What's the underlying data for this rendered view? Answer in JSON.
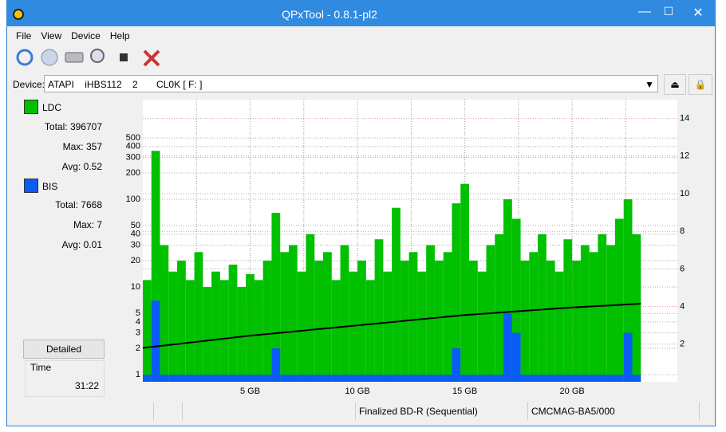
{
  "window": {
    "title": "QPxTool - 0.8.1-pl2",
    "menu": [
      "File",
      "View",
      "Device",
      "Help"
    ],
    "device_label": "Device:",
    "device": "ATAPI    iHBS112    2       CL0K [ F: ]",
    "ldc_stats": [
      {
        "label": "Total:",
        "value": 396707
      },
      {
        "label": "Max:",
        "value": 357
      },
      {
        "label": "Avg:",
        "value": 0.52
      }
    ],
    "bis_stats": [
      {
        "label": "Total:",
        "value": 7668
      },
      {
        "label": "Max:",
        "value": 7
      },
      {
        "label": "Avg:",
        "value": 0.01
      }
    ],
    "detailed_button": "Detailed",
    "time_label": "Time",
    "time": "31:22",
    "status": [
      "Finalized BD-R (Sequential)",
      "CMCMAG-BA5/000"
    ]
  },
  "chart_data": {
    "type": "bar",
    "x": [
      0.2,
      0.6,
      1.0,
      1.4,
      1.8,
      2.2,
      2.6,
      3.0,
      3.4,
      3.8,
      4.2,
      4.6,
      5.0,
      5.4,
      5.8,
      6.2,
      6.6,
      7.0,
      7.4,
      7.8,
      8.2,
      8.6,
      9.0,
      9.4,
      9.8,
      10.2,
      10.6,
      11.0,
      11.4,
      11.8,
      12.2,
      12.6,
      13.0,
      13.4,
      13.8,
      14.2,
      14.6,
      15.0,
      15.4,
      15.8,
      16.2,
      16.6,
      17.0,
      17.4,
      17.8,
      18.2,
      18.6,
      19.0,
      19.4,
      19.8,
      20.2,
      20.6,
      21.0,
      21.4,
      21.8,
      22.2,
      22.6,
      23.0
    ],
    "xlim": [
      0,
      24.9
    ],
    "xticks": [
      {
        "value": 5,
        "label": "5 GB"
      },
      {
        "value": 10,
        "label": "10 GB"
      },
      {
        "value": 15,
        "label": "15 GB"
      },
      {
        "value": 20,
        "label": "20 GB"
      }
    ],
    "xgrid": [
      2.5,
      7.5,
      12.5,
      17.5,
      22.5
    ],
    "ylim": [
      0.83,
      1370
    ],
    "log_y": true,
    "yticks": [
      1,
      2,
      3,
      4,
      5,
      10,
      20,
      30,
      40,
      50,
      100,
      200,
      300,
      400,
      500
    ],
    "y2lim": [
      0,
      15
    ],
    "y2ticks": [
      2,
      4,
      6,
      8,
      10,
      12,
      14
    ],
    "grid": true,
    "series": [
      {
        "name": "LDC",
        "color": "#00c000",
        "values": [
          12,
          357,
          30,
          15,
          20,
          12,
          25,
          10,
          15,
          12,
          18,
          10,
          14,
          12,
          20,
          70,
          25,
          30,
          15,
          40,
          20,
          25,
          12,
          30,
          15,
          20,
          12,
          35,
          15,
          80,
          20,
          25,
          15,
          30,
          20,
          25,
          90,
          150,
          20,
          15,
          30,
          40,
          100,
          60,
          20,
          25,
          40,
          20,
          15,
          35,
          20,
          30,
          25,
          40,
          30,
          60,
          100,
          40
        ]
      },
      {
        "name": "BIS",
        "color": "#0a5cf5",
        "values": [
          1,
          7,
          1,
          1,
          1,
          1,
          1,
          1,
          1,
          1,
          1,
          1,
          1,
          1,
          1,
          2,
          1,
          1,
          1,
          1,
          1,
          1,
          1,
          1,
          1,
          1,
          1,
          1,
          1,
          1,
          1,
          1,
          1,
          1,
          1,
          1,
          2,
          1,
          1,
          1,
          1,
          1,
          5,
          3,
          1,
          1,
          1,
          1,
          1,
          1,
          1,
          1,
          1,
          1,
          1,
          1,
          3,
          1
        ]
      },
      {
        "type": "line",
        "axis": "y2",
        "color": "#000000",
        "x": [
          0,
          5,
          10,
          15,
          20,
          23.2
        ],
        "values": [
          1.8,
          2.45,
          3.0,
          3.55,
          3.95,
          4.15
        ]
      }
    ]
  }
}
